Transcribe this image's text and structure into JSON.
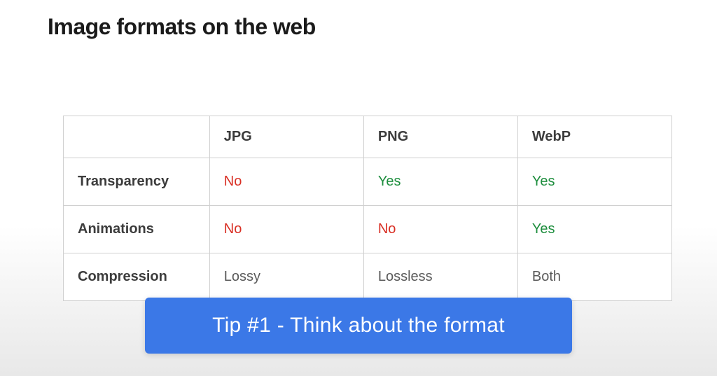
{
  "title": "Image formats on the web",
  "table": {
    "columns": [
      "",
      "JPG",
      "PNG",
      "WebP"
    ],
    "rows": [
      {
        "label": "Transparency",
        "cells": [
          {
            "text": "No",
            "kind": "no"
          },
          {
            "text": "Yes",
            "kind": "yes"
          },
          {
            "text": "Yes",
            "kind": "yes"
          }
        ]
      },
      {
        "label": "Animations",
        "cells": [
          {
            "text": "No",
            "kind": "no"
          },
          {
            "text": "No",
            "kind": "no"
          },
          {
            "text": "Yes",
            "kind": "yes"
          }
        ]
      },
      {
        "label": "Compression",
        "cells": [
          {
            "text": "Lossy",
            "kind": "neutral"
          },
          {
            "text": "Lossless",
            "kind": "neutral"
          },
          {
            "text": "Both",
            "kind": "neutral"
          }
        ]
      }
    ]
  },
  "tip": "Tip #1 - Think about the format",
  "colors": {
    "no": "#d93025",
    "yes": "#1e8e3e",
    "neutral": "#5a5a5a",
    "banner_bg": "#3b78e7",
    "banner_text": "#ffffff",
    "border": "#d0d0d0",
    "heading": "#1a1a1a"
  }
}
